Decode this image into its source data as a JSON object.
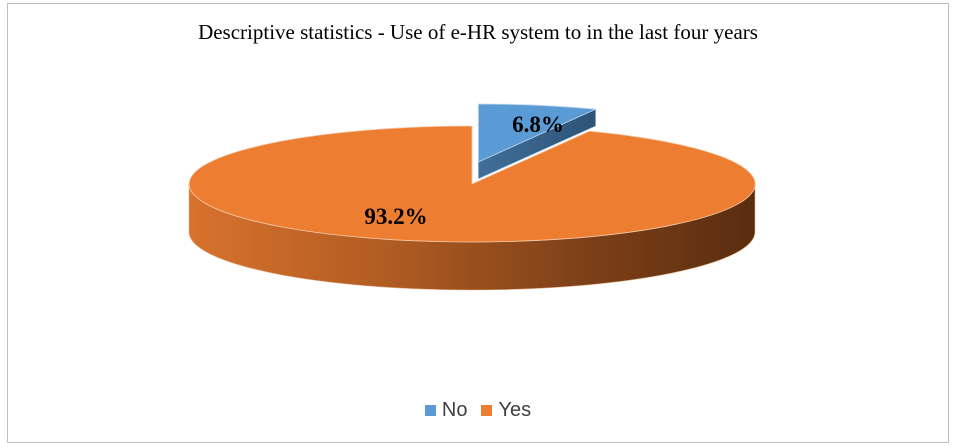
{
  "chart_data": {
    "type": "pie",
    "title": "Descriptive statistics - Use of e-HR system to in the last four years",
    "legend_position": "bottom",
    "slices": [
      {
        "name": "No",
        "value": 6.8,
        "label": "6.8%",
        "color": "#5b9bd5"
      },
      {
        "name": "Yes",
        "value": 93.2,
        "label": "93.2%",
        "color": "#ed7d31"
      }
    ]
  }
}
